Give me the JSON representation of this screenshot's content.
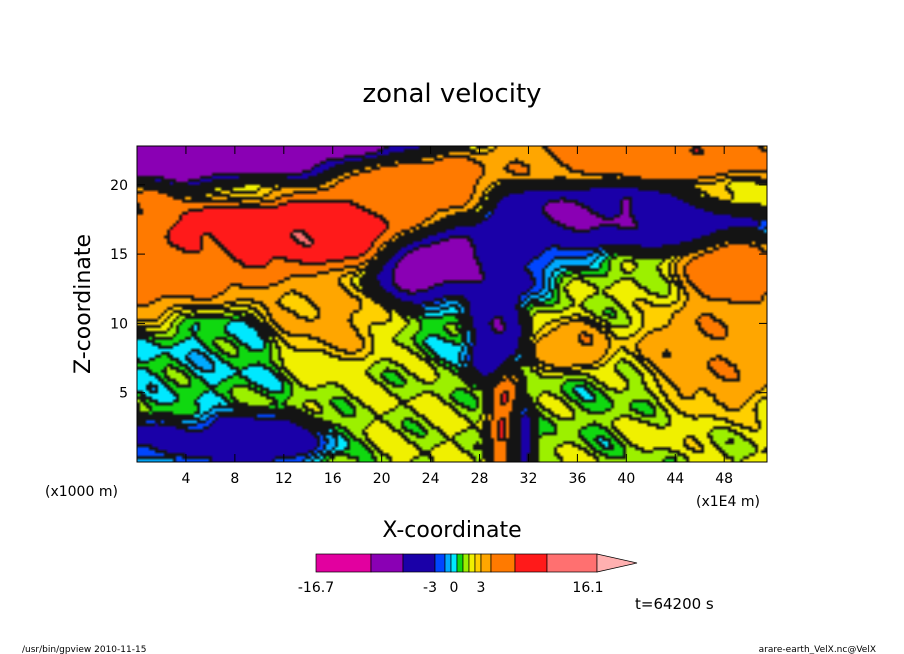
{
  "chart_data": {
    "type": "heatmap",
    "title": "zonal velocity",
    "xlabel": "X-coordinate",
    "ylabel": "Z-coordinate",
    "x_unit_left": "(x1000 m)",
    "x_unit_right": "(x1E4 m)",
    "xlim": [
      0,
      51.5
    ],
    "ylim": [
      0,
      22.8
    ],
    "x_ticks": [
      4,
      8,
      12,
      16,
      20,
      24,
      28,
      32,
      36,
      40,
      44,
      48
    ],
    "y_ticks": [
      5,
      10,
      15,
      20
    ],
    "colorbar": {
      "colors": [
        "#e2009f",
        "#8a00b4",
        "#1a00a8",
        "#0046ff",
        "#00aaff",
        "#00e8ff",
        "#10d810",
        "#9cf000",
        "#f0f000",
        "#ffd000",
        "#ffa600",
        "#ff7a00",
        "#ff1a1a",
        "#ff7070",
        "#ffb0b0"
      ],
      "min_label": "-16.7",
      "mid_labels": [
        "-3",
        "0",
        "3"
      ],
      "max_label": "16.1"
    },
    "blobs": [
      {
        "x": 3,
        "z": 21.5,
        "rx": 6,
        "rz": 1.4,
        "v": -12
      },
      {
        "x": 10,
        "z": 21.8,
        "rx": 7,
        "rz": 1.4,
        "v": -11
      },
      {
        "x": 16,
        "z": 22.6,
        "rx": 7,
        "rz": 1.0,
        "v": -14
      },
      {
        "x": 9,
        "z": 19.5,
        "rx": 4,
        "rz": 1.0,
        "v": 2
      },
      {
        "x": 12,
        "z": 16.5,
        "rx": 9,
        "rz": 2.3,
        "v": 11
      },
      {
        "x": 5,
        "z": 14,
        "rx": 6,
        "rz": 2.6,
        "v": 7
      },
      {
        "x": 1,
        "z": 12.5,
        "rx": 4,
        "rz": 2.5,
        "v": 6
      },
      {
        "x": 22,
        "z": 20,
        "rx": 6,
        "rz": 2.5,
        "v": 7
      },
      {
        "x": 1,
        "z": 18.5,
        "rx": 2,
        "rz": 1.5,
        "v": 6
      },
      {
        "x": 42,
        "z": 21.8,
        "rx": 8,
        "rz": 1.5,
        "v": 8
      },
      {
        "x": 35,
        "z": 21.5,
        "rx": 5,
        "rz": 1.5,
        "v": 5
      },
      {
        "x": 48,
        "z": 19,
        "rx": 3,
        "rz": 1.2,
        "v": 2
      },
      {
        "x": 37,
        "z": 17.5,
        "rx": 7,
        "rz": 2.2,
        "v": -9
      },
      {
        "x": 46,
        "z": 17,
        "rx": 4,
        "rz": 1.5,
        "v": -7
      },
      {
        "x": 30.5,
        "z": 14,
        "rx": 4,
        "rz": 2.0,
        "v": -4
      },
      {
        "x": 25.5,
        "z": 14,
        "rx": 4.5,
        "rz": 2.2,
        "v": -13
      },
      {
        "x": 29,
        "z": 10,
        "rx": 2,
        "rz": 3.5,
        "v": -9
      },
      {
        "x": 33,
        "z": 14.5,
        "rx": 4,
        "rz": 1.5,
        "v": -2
      },
      {
        "x": 26,
        "z": 10,
        "rx": 3,
        "rz": 3,
        "v": 0
      },
      {
        "x": 39,
        "z": 12,
        "rx": 6,
        "rz": 3.5,
        "v": 1
      },
      {
        "x": 48,
        "z": 14,
        "rx": 3,
        "rz": 2.5,
        "v": 8
      },
      {
        "x": 36,
        "z": 8.5,
        "rx": 2.5,
        "rz": 1.5,
        "v": 6
      },
      {
        "x": 30.2,
        "z": 3,
        "rx": 1.2,
        "rz": 3.5,
        "v": 9
      },
      {
        "x": 31.3,
        "z": 1.8,
        "rx": 0.9,
        "rz": 2.3,
        "v": -6
      },
      {
        "x": 46,
        "z": 8,
        "rx": 5,
        "rz": 3.5,
        "v": 5
      },
      {
        "x": 40,
        "z": 4,
        "rx": 5,
        "rz": 3,
        "v": 0.3
      },
      {
        "x": 43,
        "z": 2.5,
        "rx": 3,
        "rz": 1.5,
        "v": 2
      },
      {
        "x": 15,
        "z": 10.5,
        "rx": 4,
        "rz": 2.5,
        "v": 3.6
      },
      {
        "x": 5,
        "z": 8,
        "rx": 6,
        "rz": 3.5,
        "v": -0.5
      },
      {
        "x": 9,
        "z": 1.5,
        "rx": 5,
        "rz": 1.5,
        "v": -5
      },
      {
        "x": 1,
        "z": 1.5,
        "rx": 3,
        "rz": 1.2,
        "v": -4
      },
      {
        "x": 26,
        "z": 3,
        "rx": 3,
        "rz": 2.5,
        "v": 1
      }
    ],
    "background_value": 1.0,
    "footer_left": "/usr/bin/gpview   2010-11-15",
    "footer_right": "arare-earth_VelX.nc@VelX",
    "time_label": "t=64200 s"
  }
}
